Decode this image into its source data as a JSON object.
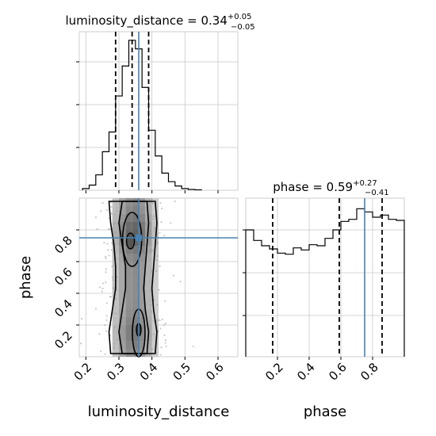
{
  "chart_data": [
    {
      "type": "histogram",
      "panel": "luminosity_distance-marginal",
      "title": {
        "prefix": "luminosity_distance = 0.34",
        "sup": "+0.05",
        "sub": "−0.05"
      },
      "xlim": [
        0.18,
        0.66
      ],
      "bins": [
        0.19,
        0.21,
        0.23,
        0.25,
        0.27,
        0.29,
        0.31,
        0.33,
        0.35,
        0.37,
        0.39,
        0.41,
        0.43,
        0.45,
        0.47,
        0.49,
        0.51,
        0.53,
        0.55
      ],
      "values": [
        0.2,
        0.6,
        1.8,
        4.5,
        6.8,
        11,
        14.5,
        17.5,
        16.5,
        12,
        7,
        4,
        2,
        1,
        0.5,
        0.2,
        0.1,
        0.05
      ],
      "ylim": [
        0,
        18.5
      ],
      "quantiles": [
        0.29,
        0.34,
        0.39
      ],
      "truth": 0.36,
      "color": "#000000",
      "truth_color": "#4682b4"
    },
    {
      "type": "scatter",
      "panel": "joint",
      "xlabel": "luminosity_distance",
      "ylabel": "phase",
      "xlim": [
        0.18,
        0.66
      ],
      "ylim": [
        0.0,
        1.0
      ],
      "xticks": [
        "0.2",
        "0.3",
        "0.4",
        "0.5",
        "0.6"
      ],
      "yticks": [
        "0.2",
        "0.4",
        "0.6",
        "0.8"
      ],
      "truth": {
        "x": 0.36,
        "y": 0.75
      },
      "density_shading": "grey 2D histogram with 4 contour levels",
      "truth_color": "#4682b4"
    },
    {
      "type": "histogram",
      "panel": "phase-marginal",
      "title": {
        "prefix": "phase = 0.59",
        "sup": "+0.27",
        "sub": "−0.41"
      },
      "xlim": [
        0.0,
        1.0
      ],
      "xlabel": "phase",
      "xticks": [
        "0.2",
        "0.4",
        "0.6",
        "0.8"
      ],
      "bins": [
        0.0,
        0.05,
        0.1,
        0.15,
        0.2,
        0.25,
        0.3,
        0.35,
        0.4,
        0.45,
        0.5,
        0.55,
        0.6,
        0.65,
        0.7,
        0.75,
        0.8,
        0.85,
        0.9,
        0.95,
        1.0
      ],
      "values": [
        12,
        11,
        10.5,
        10.2,
        9.8,
        9.7,
        10.3,
        10.1,
        10.6,
        10.5,
        11.2,
        12,
        12.8,
        13,
        14,
        13.7,
        13.2,
        13.4,
        13,
        12.9
      ],
      "ylim": [
        0,
        15
      ],
      "quantiles": [
        0.17,
        0.59,
        0.86
      ],
      "truth": 0.75,
      "color": "#000000",
      "truth_color": "#4682b4"
    }
  ]
}
